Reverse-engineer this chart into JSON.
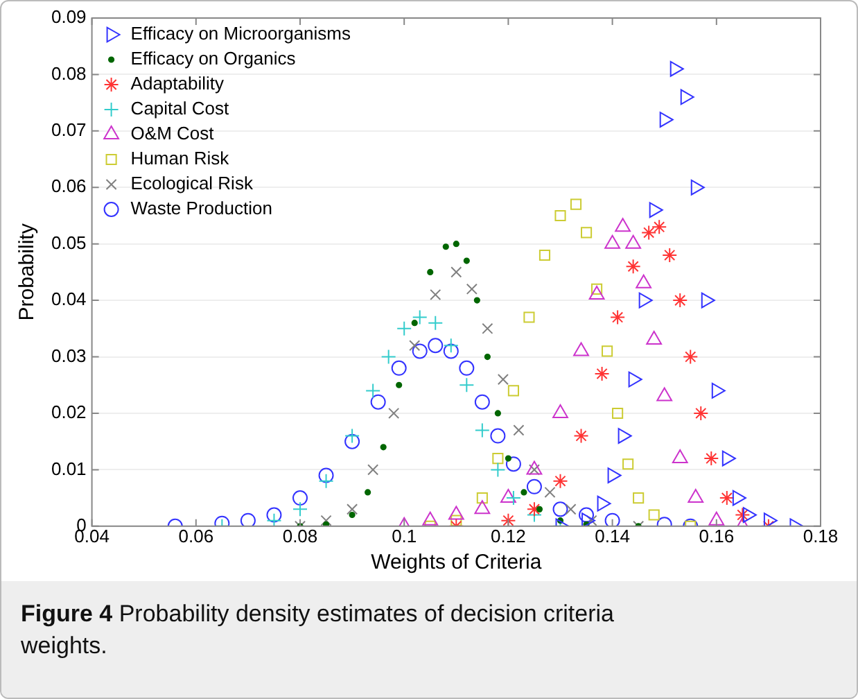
{
  "chart_data": {
    "type": "scatter",
    "xlabel": "Weights of Criteria",
    "ylabel": "Probability",
    "legend": "top left",
    "grid": "y",
    "xlim": [
      0.04,
      0.18
    ],
    "xticks": [
      0.04,
      0.06,
      0.08,
      0.1,
      0.12,
      0.14,
      0.16,
      0.18
    ],
    "ylim": [
      0,
      0.09
    ],
    "yticks": [
      0,
      0.01,
      0.02,
      0.03,
      0.04,
      0.05,
      0.06,
      0.07,
      0.08,
      0.09
    ],
    "annotations": [
      "Figure 4",
      "Probability density estimates of decision criteria weights."
    ],
    "series": [
      {
        "name": "Efficacy on Microorganisms",
        "color": "#3333ff",
        "marker": "triangle-right",
        "x": [
          0.13,
          0.135,
          0.138,
          0.14,
          0.142,
          0.144,
          0.146,
          0.148,
          0.15,
          0.152,
          0.154,
          0.156,
          0.158,
          0.16,
          0.162,
          0.164,
          0.166,
          0.17,
          0.175
        ],
        "values": [
          0,
          0.001,
          0.004,
          0.009,
          0.016,
          0.026,
          0.04,
          0.056,
          0.072,
          0.081,
          0.076,
          0.06,
          0.04,
          0.024,
          0.012,
          0.005,
          0.002,
          0.001,
          0
        ]
      },
      {
        "name": "Efficacy on Organics",
        "color": "#006600",
        "marker": "point",
        "x": [
          0.08,
          0.085,
          0.09,
          0.093,
          0.096,
          0.099,
          0.102,
          0.105,
          0.108,
          0.11,
          0.112,
          0.114,
          0.116,
          0.118,
          0.12,
          0.123,
          0.126,
          0.13,
          0.135,
          0.145
        ],
        "values": [
          0,
          0.0003,
          0.002,
          0.006,
          0.014,
          0.025,
          0.036,
          0.045,
          0.0495,
          0.05,
          0.047,
          0.04,
          0.03,
          0.02,
          0.012,
          0.006,
          0.003,
          0.001,
          0.0003,
          0
        ]
      },
      {
        "name": "Adaptability",
        "color": "#ff3333",
        "x": [
          0.11,
          0.12,
          0.125,
          0.13,
          0.134,
          0.138,
          0.141,
          0.144,
          0.147,
          0.149,
          0.151,
          0.153,
          0.155,
          0.157,
          0.159,
          0.162,
          0.165,
          0.17
        ],
        "values": [
          0,
          0.001,
          0.003,
          0.008,
          0.016,
          0.027,
          0.037,
          0.046,
          0.052,
          0.053,
          0.048,
          0.04,
          0.03,
          0.02,
          0.012,
          0.005,
          0.002,
          0
        ]
      },
      {
        "name": "Capital Cost",
        "color": "#33cccc",
        "marker": "cross",
        "x": [
          0.065,
          0.075,
          0.08,
          0.085,
          0.09,
          0.094,
          0.097,
          0.1,
          0.103,
          0.106,
          0.109,
          0.112,
          0.115,
          0.118,
          0.121,
          0.125,
          0.13
        ],
        "values": [
          0,
          0.001,
          0.003,
          0.008,
          0.016,
          0.024,
          0.03,
          0.035,
          0.037,
          0.036,
          0.032,
          0.025,
          0.017,
          0.01,
          0.005,
          0.002,
          0
        ]
      },
      {
        "name": "O&M Cost",
        "color": "#cc33cc",
        "marker": "triangle",
        "x": [
          0.1,
          0.105,
          0.11,
          0.115,
          0.12,
          0.125,
          0.13,
          0.134,
          0.137,
          0.14,
          0.142,
          0.144,
          0.146,
          0.148,
          0.15,
          0.153,
          0.156,
          0.16,
          0.165
        ],
        "values": [
          0,
          0.001,
          0.002,
          0.003,
          0.005,
          0.01,
          0.02,
          0.031,
          0.041,
          0.05,
          0.053,
          0.05,
          0.043,
          0.033,
          0.023,
          0.012,
          0.005,
          0.001,
          0
        ]
      },
      {
        "name": "Human Risk",
        "color": "#cccc33",
        "marker": "square",
        "x": [
          0.105,
          0.11,
          0.115,
          0.118,
          0.121,
          0.124,
          0.127,
          0.13,
          0.133,
          0.135,
          0.137,
          0.139,
          0.141,
          0.143,
          0.145,
          0.148,
          0.155
        ],
        "values": [
          0,
          0.001,
          0.005,
          0.012,
          0.024,
          0.037,
          0.048,
          0.055,
          0.057,
          0.052,
          0.042,
          0.031,
          0.02,
          0.011,
          0.005,
          0.002,
          0
        ]
      },
      {
        "name": "Ecological Risk",
        "color": "#808080",
        "marker": "x",
        "x": [
          0.08,
          0.085,
          0.09,
          0.094,
          0.098,
          0.102,
          0.106,
          0.11,
          0.113,
          0.116,
          0.119,
          0.122,
          0.125,
          0.128,
          0.132,
          0.136,
          0.145
        ],
        "values": [
          0,
          0.001,
          0.003,
          0.01,
          0.02,
          0.032,
          0.041,
          0.045,
          0.042,
          0.035,
          0.026,
          0.017,
          0.01,
          0.006,
          0.003,
          0.001,
          0
        ]
      },
      {
        "name": "Waste Production",
        "color": "#3333ff",
        "marker": "circle",
        "x": [
          0.056,
          0.065,
          0.07,
          0.075,
          0.08,
          0.085,
          0.09,
          0.095,
          0.099,
          0.103,
          0.106,
          0.109,
          0.112,
          0.115,
          0.118,
          0.121,
          0.125,
          0.13,
          0.135,
          0.14,
          0.15,
          0.155
        ],
        "values": [
          0,
          0.0005,
          0.001,
          0.002,
          0.005,
          0.009,
          0.015,
          0.022,
          0.028,
          0.031,
          0.032,
          0.031,
          0.028,
          0.022,
          0.016,
          0.011,
          0.007,
          0.003,
          0.002,
          0.001,
          0.0003,
          0
        ]
      }
    ]
  }
}
